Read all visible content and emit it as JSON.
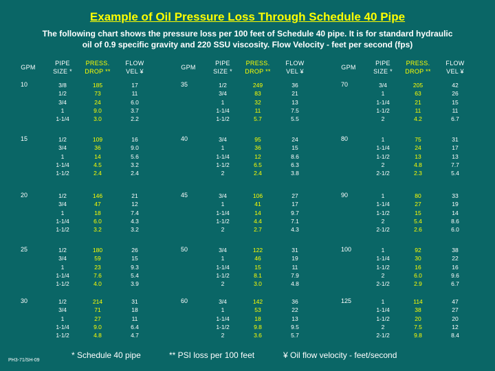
{
  "title": "Example of Oil Pressure Loss Through Schedule 40 Pipe",
  "subtitle": "The following chart shows the pressure loss per 100 feet of Schedule 40 pipe. It is for standard hydraulic oil of 0.9 specific gravity and 220 SSU viscosity. Flow Velocity - feet per second (fps)",
  "headers": {
    "gpm": "GPM",
    "pipe1": "PIPE",
    "pipe2": "SIZE *",
    "press1": "PRESS.",
    "press2": "DROP **",
    "flow1": "FLOW",
    "flow2": "VEL ¥"
  },
  "columns": [
    {
      "rows": [
        {
          "gpm": "10",
          "pipe": "3/8\n1/2\n3/4\n1\n1-1/4",
          "press": "185\n73\n24\n9.0\n3.0",
          "flow": "17\n11\n6.0\n3.7\n2.2"
        },
        {
          "gpm": "15",
          "pipe": "1/2\n3/4\n1\n1-1/4\n1-1/2",
          "press": "109\n36\n14\n4.5\n2.4",
          "flow": "16\n9.0\n5.6\n3.2\n2.4"
        },
        {
          "gpm": "20",
          "pipe": "1/2\n3/4\n1\n1-1/4\n1-1/2",
          "press": "146\n47\n18\n6.0\n3.2",
          "flow": "21\n12\n7.4\n4.3\n3.2"
        },
        {
          "gpm": "25",
          "pipe": "1/2\n3/4\n1\n1-1/4\n1-1/2",
          "press": "180\n59\n23\n7.6\n4.0",
          "flow": "26\n15\n9.3\n5.4\n3.9"
        },
        {
          "gpm": "30",
          "pipe": "1/2\n3/4\n1\n1-1/4\n1-1/2",
          "press": "214\n71\n27\n9.0\n4.8",
          "flow": "31\n18\n11\n6.4\n4.7"
        }
      ]
    },
    {
      "rows": [
        {
          "gpm": "35",
          "pipe": "1/2\n3/4\n1\n1-1/4\n1-1/2",
          "press": "249\n83\n32\n11\n5.7",
          "flow": "36\n21\n13\n7.5\n5.5"
        },
        {
          "gpm": "40",
          "pipe": "3/4\n1\n1-1/4\n1-1/2\n2",
          "press": "95\n36\n12\n6.5\n2.4",
          "flow": "24\n15\n8.6\n6.3\n3.8"
        },
        {
          "gpm": "45",
          "pipe": "3/4\n1\n1-1/4\n1-1/2\n2",
          "press": "106\n41\n14\n4.4\n2.7",
          "flow": "27\n17\n9.7\n7.1\n4.3"
        },
        {
          "gpm": "50",
          "pipe": "3/4\n1\n1-1/4\n1-1/2\n2",
          "press": "122\n46\n15\n8.1\n3.0",
          "flow": "31\n19\n11\n7.9\n4.8"
        },
        {
          "gpm": "60",
          "pipe": "3/4\n1\n1-1/4\n1-1/2\n2",
          "press": "142\n53\n18\n9.8\n3.6",
          "flow": "36\n22\n13\n9.5\n5.7"
        }
      ]
    },
    {
      "rows": [
        {
          "gpm": "70",
          "pipe": "3/4\n1\n1-1/4\n1-1/2\n2",
          "press": "205\n63\n21\n11\n4.2",
          "flow": "42\n26\n15\n11\n6.7"
        },
        {
          "gpm": "80",
          "pipe": "1\n1-1/4\n1-1/2\n2\n2-1/2",
          "press": "75\n24\n13\n4.8\n2.3",
          "flow": "31\n17\n13\n7.7\n5.4"
        },
        {
          "gpm": "90",
          "pipe": "1\n1-1/4\n1-1/2\n2\n2-1/2",
          "press": "80\n27\n15\n5.4\n2.6",
          "flow": "33\n19\n14\n8.6\n6.0"
        },
        {
          "gpm": "100",
          "pipe": "1\n1-1/4\n1-1/2\n2\n2-1/2",
          "press": "92\n30\n16\n6.0\n2.9",
          "flow": "38\n22\n16\n9.6\n6.7"
        },
        {
          "gpm": "125",
          "pipe": "1\n1-1/4\n1-1/2\n2\n2-1/2",
          "press": "114\n38\n20\n7.5\n9.8",
          "flow": "47\n27\n20\n12\n8.4"
        }
      ]
    }
  ],
  "footnotes": {
    "pipe": "* Schedule 40 pipe",
    "psi": "** PSI loss per 100 feet",
    "oil": "¥ Oil flow velocity - feet/second"
  },
  "doc_code": "PH3-71/SH-09"
}
